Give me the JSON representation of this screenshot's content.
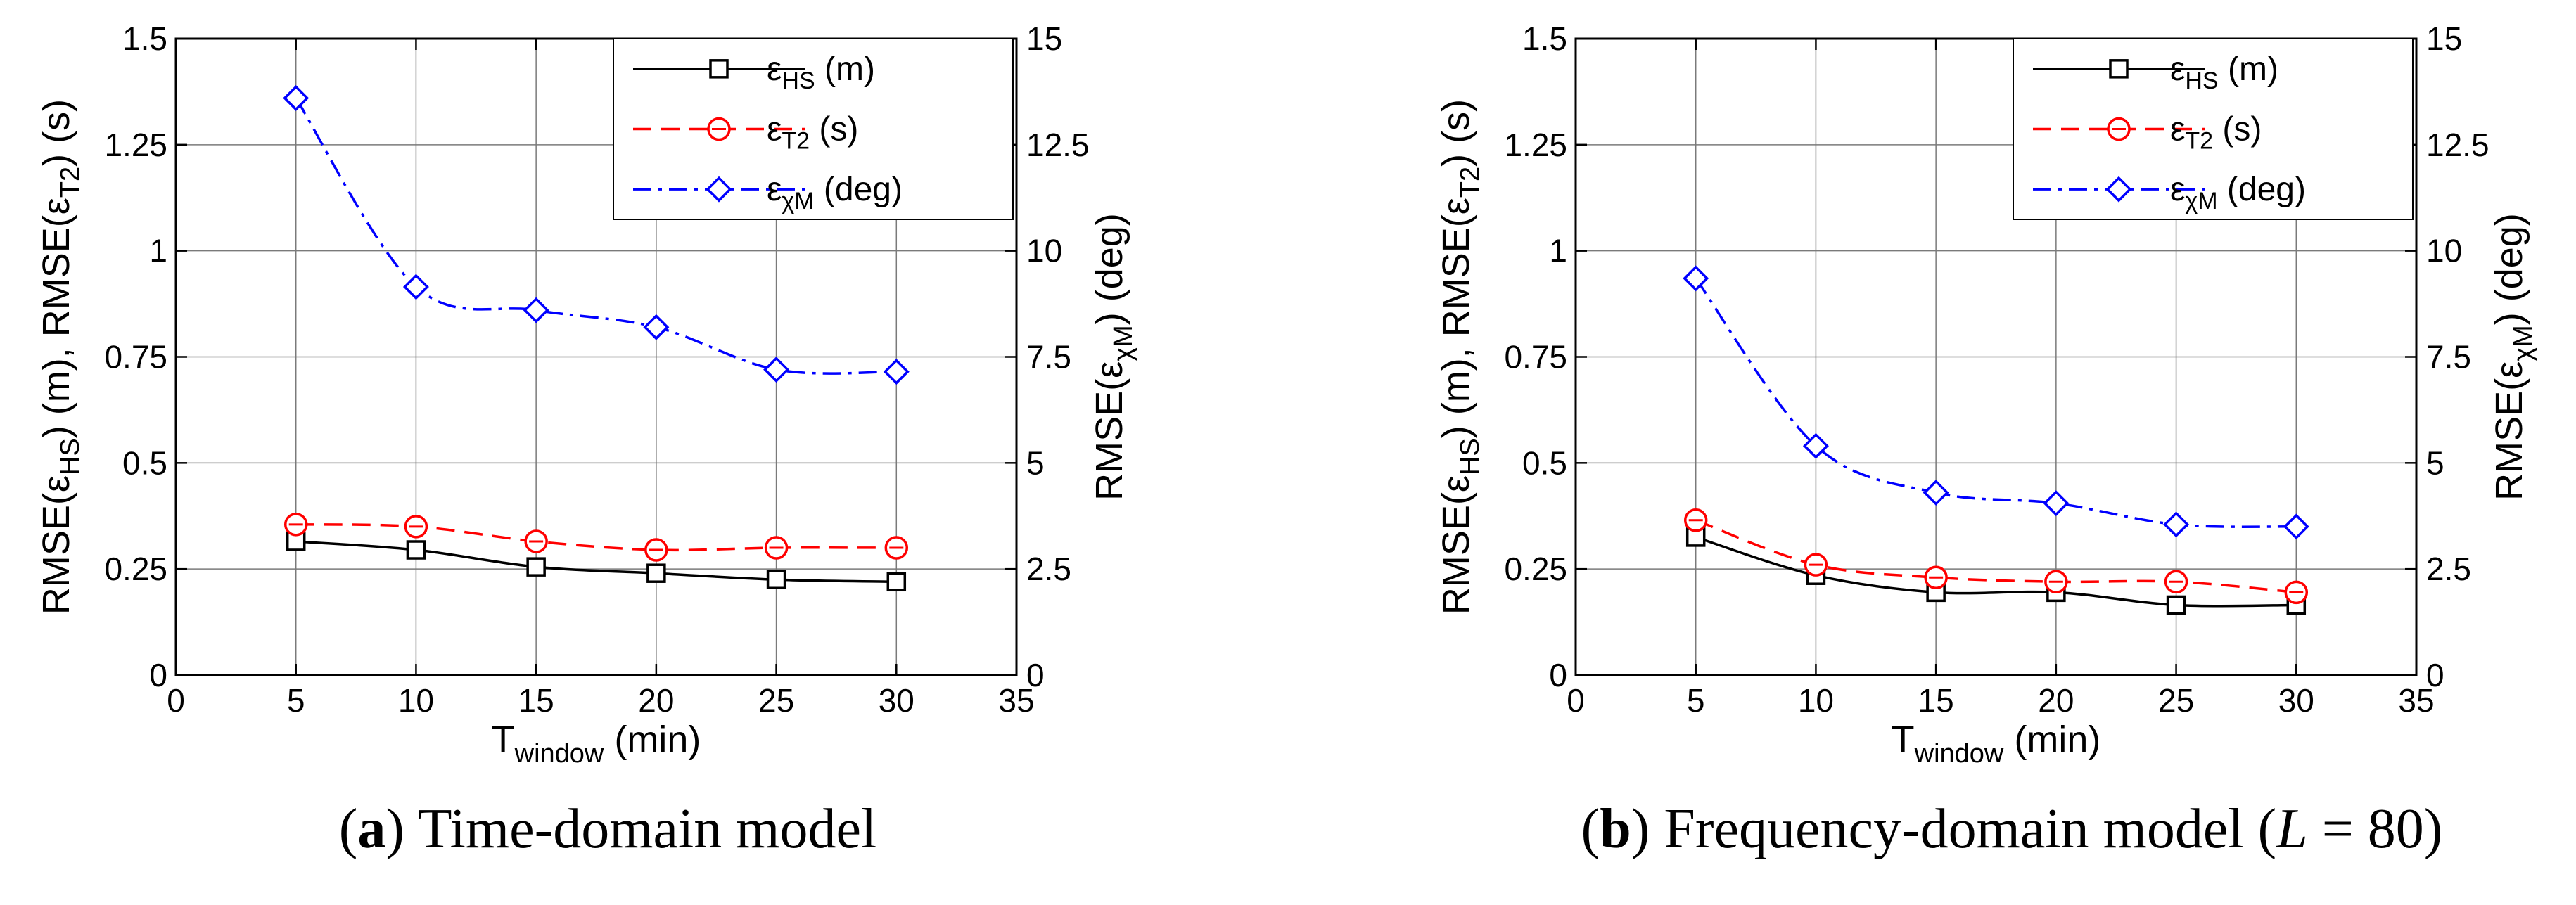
{
  "chart_data": [
    {
      "type": "line",
      "panel_label": "a",
      "caption": "Time-domain model",
      "x_axis": {
        "label_main": "T",
        "label_sub": "window",
        "label_unit": " (min)",
        "range": [
          0,
          35
        ],
        "ticks": [
          0,
          5,
          10,
          15,
          20,
          25,
          30,
          35
        ],
        "tick_labels": [
          "0",
          "5",
          "10",
          "15",
          "20",
          "25",
          "30",
          "35"
        ]
      },
      "y_left": {
        "label_parts": [
          [
            "RMSE(ε",
            ""
          ],
          [
            "HS",
            "sub"
          ],
          [
            ") (m), RMSE(ε",
            ""
          ],
          [
            "T2",
            "sub"
          ],
          [
            ") (s)",
            ""
          ]
        ],
        "range": [
          0,
          1.5
        ],
        "ticks": [
          0,
          0.25,
          0.5,
          0.75,
          1,
          1.25,
          1.5
        ],
        "tick_labels": [
          "0",
          "0.25",
          "0.5",
          "0.75",
          "1",
          "1.25",
          "1.5"
        ]
      },
      "y_right": {
        "label_parts": [
          [
            "RMSE(ε",
            ""
          ],
          [
            "χM",
            "sub"
          ],
          [
            ") (deg)",
            ""
          ]
        ],
        "range": [
          0,
          15
        ],
        "ticks": [
          0,
          2.5,
          5,
          7.5,
          10,
          12.5,
          15
        ],
        "tick_labels": [
          "0",
          "2.5",
          "5",
          "7.5",
          "10",
          "12.5",
          "15"
        ]
      },
      "grid": true,
      "legend_position": "top-right",
      "series": [
        {
          "name": "ε",
          "name_sub": "HS",
          "name_unit": " (m)",
          "axis": "left",
          "color": "#000000",
          "style": "solid",
          "marker": "square",
          "x": [
            5,
            10,
            15,
            20,
            25,
            30
          ],
          "values": [
            0.315,
            0.295,
            0.255,
            0.24,
            0.225,
            0.22
          ]
        },
        {
          "name": "ε",
          "name_sub": "T2",
          "name_unit": " (s)",
          "axis": "left",
          "color": "#ff0000",
          "style": "dash",
          "marker": "circle",
          "x": [
            5,
            10,
            15,
            20,
            25,
            30
          ],
          "values": [
            0.355,
            0.35,
            0.315,
            0.295,
            0.3,
            0.3
          ]
        },
        {
          "name": "ε",
          "name_sub": "χM",
          "name_unit": " (deg)",
          "axis": "right",
          "color": "#0000ff",
          "style": "dashdot",
          "marker": "diamond",
          "x": [
            5,
            10,
            15,
            20,
            25,
            30
          ],
          "values": [
            13.6,
            9.15,
            8.6,
            8.2,
            7.2,
            7.15
          ]
        }
      ]
    },
    {
      "type": "line",
      "panel_label": "b",
      "caption": "Frequency-domain model (",
      "caption_italic": "L",
      "caption_tail": " = 80)",
      "x_axis": {
        "label_main": "T",
        "label_sub": "window",
        "label_unit": " (min)",
        "range": [
          0,
          35
        ],
        "ticks": [
          0,
          5,
          10,
          15,
          20,
          25,
          30,
          35
        ],
        "tick_labels": [
          "0",
          "5",
          "10",
          "15",
          "20",
          "25",
          "30",
          "35"
        ]
      },
      "y_left": {
        "label_parts": [
          [
            "RMSE(ε",
            ""
          ],
          [
            "HS",
            "sub"
          ],
          [
            ") (m), RMSE(ε",
            ""
          ],
          [
            "T2",
            "sub"
          ],
          [
            ") (s)",
            ""
          ]
        ],
        "range": [
          0,
          1.5
        ],
        "ticks": [
          0,
          0.25,
          0.5,
          0.75,
          1,
          1.25,
          1.5
        ],
        "tick_labels": [
          "0",
          "0.25",
          "0.5",
          "0.75",
          "1",
          "1.25",
          "1.5"
        ]
      },
      "y_right": {
        "label_parts": [
          [
            "RMSE(ε",
            ""
          ],
          [
            "χM",
            "sub"
          ],
          [
            ") (deg)",
            ""
          ]
        ],
        "range": [
          0,
          15
        ],
        "ticks": [
          0,
          2.5,
          5,
          7.5,
          10,
          12.5,
          15
        ],
        "tick_labels": [
          "0",
          "2.5",
          "5",
          "7.5",
          "10",
          "12.5",
          "15"
        ]
      },
      "grid": true,
      "legend_position": "top-right",
      "series": [
        {
          "name": "ε",
          "name_sub": "HS",
          "name_unit": " (m)",
          "axis": "left",
          "color": "#000000",
          "style": "solid",
          "marker": "square",
          "x": [
            5,
            10,
            15,
            20,
            25,
            30
          ],
          "values": [
            0.325,
            0.235,
            0.195,
            0.195,
            0.165,
            0.165
          ]
        },
        {
          "name": "ε",
          "name_sub": "T2",
          "name_unit": " (s)",
          "axis": "left",
          "color": "#ff0000",
          "style": "dash",
          "marker": "circle",
          "x": [
            5,
            10,
            15,
            20,
            25,
            30
          ],
          "values": [
            0.365,
            0.26,
            0.23,
            0.22,
            0.22,
            0.195
          ]
        },
        {
          "name": "ε",
          "name_sub": "χM",
          "name_unit": " (deg)",
          "axis": "right",
          "color": "#0000ff",
          "style": "dashdot",
          "marker": "diamond",
          "x": [
            5,
            10,
            15,
            20,
            25,
            30
          ],
          "values": [
            9.35,
            5.4,
            4.3,
            4.05,
            3.55,
            3.5
          ]
        }
      ]
    }
  ]
}
